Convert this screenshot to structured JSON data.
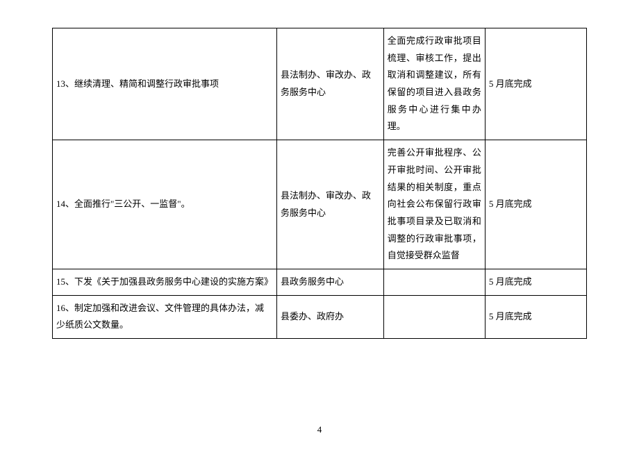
{
  "table": {
    "columns": {
      "col1_width": "42%",
      "col2_width": "20%",
      "col3_width": "19%",
      "col4_width": "19%"
    },
    "rows": [
      {
        "task": "13、继续清理、精简和调整行政审批事项",
        "dept": "县法制办、审改办、政务服务中心",
        "desc": "全面完成行政审批项目梳理、审核工作，提出取消和调整建议，所有保留的项目进入县政务服务中心进行集中办理。",
        "deadline": "5 月底完成"
      },
      {
        "task": "14、全面推行\"三公开、一监督\"。",
        "dept": "县法制办、审改办、政务服务中心",
        "desc": "完善公开审批程序、公开审批时间、公开审批结果的相关制度，重点向社会公布保留行政审批事项目录及已取消和调整的行政审批事项，自觉接受群众监督",
        "deadline": "5 月底完成"
      },
      {
        "task": "15、下发《关于加强县政务服务中心建设的实施方案》",
        "dept": "县政务服务中心",
        "desc": "",
        "deadline": "5 月底完成"
      },
      {
        "task": "16、制定加强和改进会议、文件管理的具体办法，减少纸质公文数量。",
        "dept": "县委办、政府办",
        "desc": "",
        "deadline": "5 月底完成"
      }
    ]
  },
  "page_number": "4",
  "colors": {
    "border": "#000000",
    "text": "#000000",
    "background": "#ffffff"
  },
  "typography": {
    "font_family": "SimSun",
    "cell_font_size": 13,
    "line_height": 1.9
  }
}
